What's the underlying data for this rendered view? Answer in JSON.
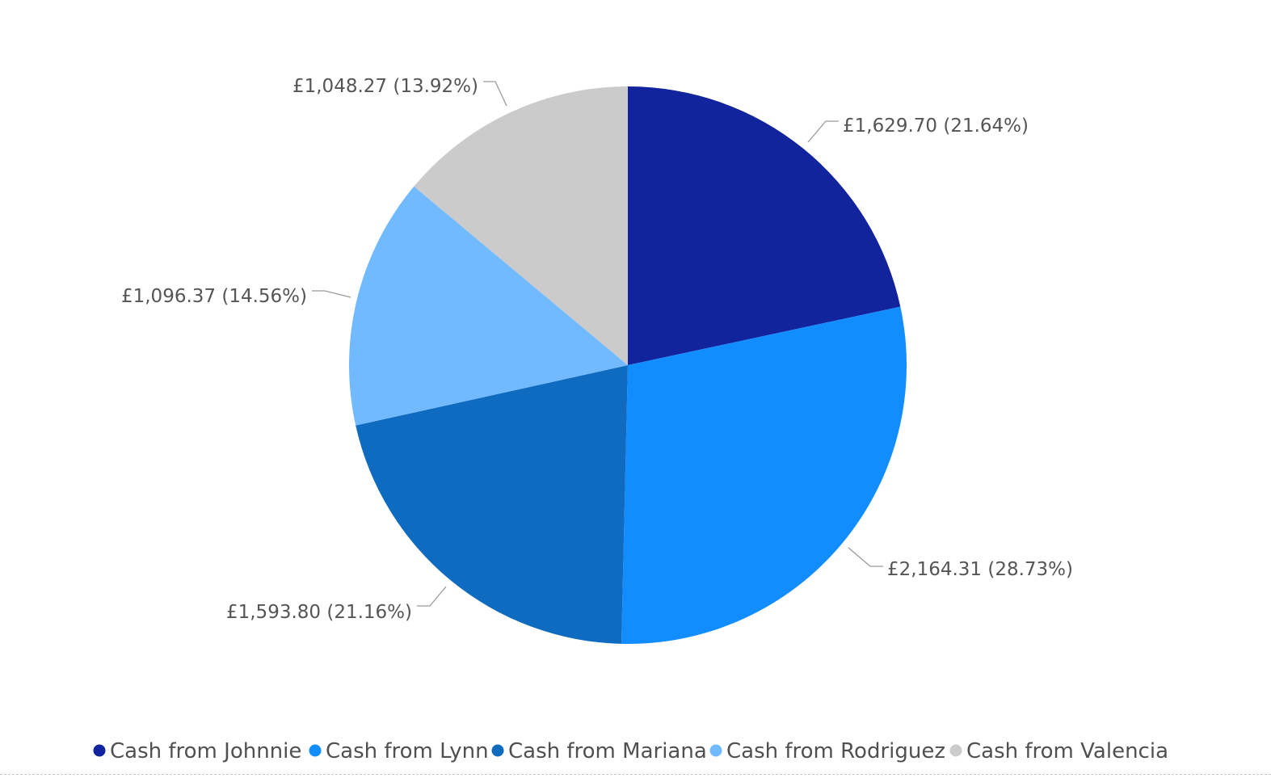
{
  "chart_data": {
    "type": "pie",
    "categories": [
      "Cash from Johnnie",
      "Cash from Lynn",
      "Cash from Mariana",
      "Cash from Rodriguez",
      "Cash from Valencia"
    ],
    "values": [
      1629.7,
      2164.31,
      1593.8,
      1096.37,
      1048.27
    ],
    "data_labels": [
      "£1,629.70 (21.64%)",
      "£2,164.31 (28.73%)",
      "£1,593.80 (21.16%)",
      "£1,096.37 (14.56%)",
      "£1,048.27 (13.92%)"
    ],
    "percentages": [
      21.64,
      28.73,
      21.16,
      14.56,
      13.92
    ],
    "colors": [
      "#12239e",
      "#118dff",
      "#0e6bbf",
      "#72baff",
      "#cbcbcb"
    ],
    "legend_placement": "bottom",
    "start_angle_deg": 0,
    "direction": "clockwise"
  }
}
